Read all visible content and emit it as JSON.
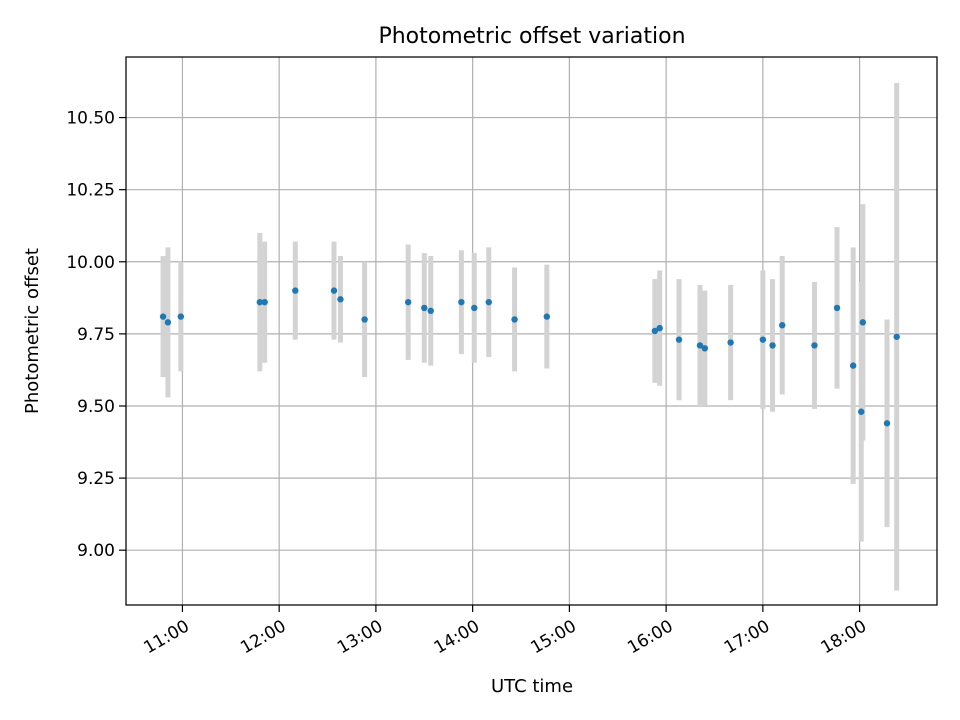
{
  "chart_data": {
    "type": "scatter",
    "title": "Photometric offset variation",
    "xlabel": "UTC time",
    "ylabel": "Photometric offset",
    "x_ticks": [
      "11:00",
      "12:00",
      "13:00",
      "14:00",
      "15:00",
      "16:00",
      "17:00",
      "18:00"
    ],
    "y_ticks": [
      "9.00",
      "9.25",
      "9.50",
      "9.75",
      "10.00",
      "10.25",
      "10.50"
    ],
    "xlim": [
      "10:25",
      "18:48"
    ],
    "ylim": [
      8.81,
      10.71
    ],
    "grid": true,
    "marker_color": "#1f77b4",
    "errorbar_color": "#d3d3d3",
    "points": [
      {
        "x": "10:48",
        "y": 9.81,
        "err": 0.21
      },
      {
        "x": "10:51",
        "y": 9.79,
        "err": 0.26
      },
      {
        "x": "10:59",
        "y": 9.81,
        "err": 0.19
      },
      {
        "x": "11:48",
        "y": 9.86,
        "err": 0.24
      },
      {
        "x": "11:51",
        "y": 9.86,
        "err": 0.21
      },
      {
        "x": "12:10",
        "y": 9.9,
        "err": 0.17
      },
      {
        "x": "12:34",
        "y": 9.9,
        "err": 0.17
      },
      {
        "x": "12:38",
        "y": 9.87,
        "err": 0.15
      },
      {
        "x": "12:53",
        "y": 9.8,
        "err": 0.2
      },
      {
        "x": "13:20",
        "y": 9.86,
        "err": 0.2
      },
      {
        "x": "13:30",
        "y": 9.84,
        "err": 0.19
      },
      {
        "x": "13:34",
        "y": 9.83,
        "err": 0.19
      },
      {
        "x": "13:53",
        "y": 9.86,
        "err": 0.18
      },
      {
        "x": "14:01",
        "y": 9.84,
        "err": 0.19
      },
      {
        "x": "14:10",
        "y": 9.86,
        "err": 0.19
      },
      {
        "x": "14:26",
        "y": 9.8,
        "err": 0.18
      },
      {
        "x": "14:46",
        "y": 9.81,
        "err": 0.18
      },
      {
        "x": "15:53",
        "y": 9.76,
        "err": 0.18
      },
      {
        "x": "15:56",
        "y": 9.77,
        "err": 0.2
      },
      {
        "x": "16:08",
        "y": 9.73,
        "err": 0.21
      },
      {
        "x": "16:21",
        "y": 9.71,
        "err": 0.21
      },
      {
        "x": "16:24",
        "y": 9.7,
        "err": 0.2
      },
      {
        "x": "16:40",
        "y": 9.72,
        "err": 0.2
      },
      {
        "x": "17:00",
        "y": 9.73,
        "err": 0.24
      },
      {
        "x": "17:06",
        "y": 9.71,
        "err": 0.23
      },
      {
        "x": "17:12",
        "y": 9.78,
        "err": 0.24
      },
      {
        "x": "17:32",
        "y": 9.71,
        "err": 0.22
      },
      {
        "x": "17:46",
        "y": 9.84,
        "err": 0.28
      },
      {
        "x": "17:56",
        "y": 9.64,
        "err": 0.41
      },
      {
        "x": "18:01",
        "y": 9.48,
        "err": 0.45
      },
      {
        "x": "18:02",
        "y": 9.79,
        "err": 0.41
      },
      {
        "x": "18:17",
        "y": 9.44,
        "err": 0.36
      },
      {
        "x": "18:23",
        "y": 9.74,
        "err": 0.88
      }
    ]
  }
}
